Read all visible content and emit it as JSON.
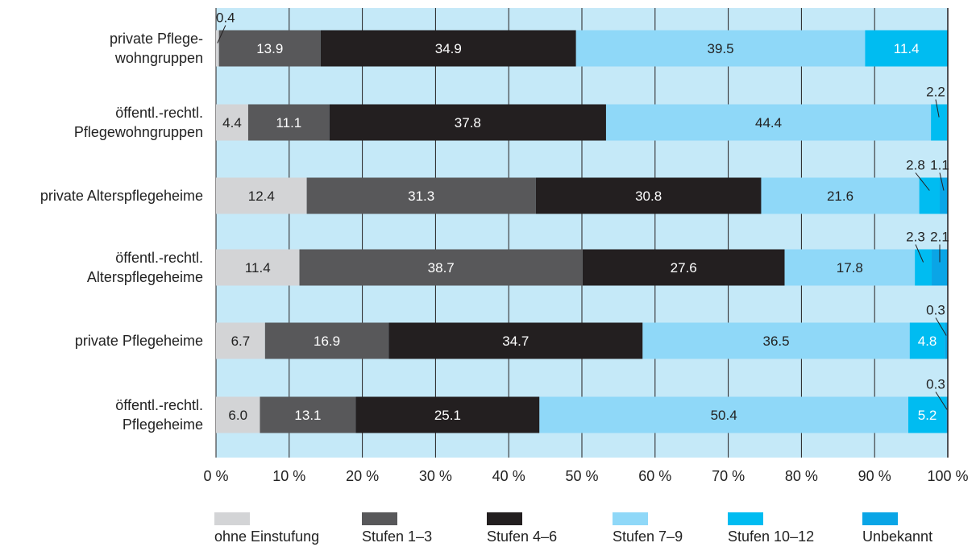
{
  "chart_data": {
    "type": "bar",
    "orientation": "horizontal",
    "stacked": true,
    "categories": [
      "private Pflege-\nwohngruppen",
      "öffentl.-rechtl.\nPflegewohngruppen",
      "private Alterspflegeheime",
      "öffentl.-rechtl.\nAlterspflegeheime",
      "private Pflegeheime",
      "öffentl.-rechtl.\nPflegeheime"
    ],
    "series": [
      {
        "name": "ohne Einstufung",
        "color": "#d3d4d6",
        "label_color": "#222222",
        "values": [
          0.4,
          4.4,
          12.4,
          11.4,
          6.7,
          6.0
        ]
      },
      {
        "name": "Stufen 1–3",
        "color": "#58585a",
        "label_color": "#ffffff",
        "values": [
          13.9,
          11.1,
          31.3,
          38.7,
          16.9,
          13.1
        ]
      },
      {
        "name": "Stufen 4–6",
        "color": "#231f20",
        "label_color": "#ffffff",
        "values": [
          34.9,
          37.8,
          30.8,
          27.6,
          34.7,
          25.1
        ]
      },
      {
        "name": "Stufen 7–9",
        "color": "#8fd8f8",
        "label_color": "#222222",
        "values": [
          39.5,
          44.4,
          21.6,
          17.8,
          36.5,
          50.4
        ]
      },
      {
        "name": "Stufen 10–12",
        "color": "#00bcf1",
        "label_color": "#ffffff",
        "values": [
          11.4,
          2.2,
          2.8,
          2.3,
          4.8,
          5.2
        ]
      },
      {
        "name": "Unbekannt",
        "color": "#0aa5e6",
        "label_color": "#222222",
        "values": [
          0,
          0,
          1.1,
          2.1,
          0.3,
          0.3
        ]
      }
    ],
    "xlim": [
      0,
      100
    ],
    "xticks": [
      "0 %",
      "10 %",
      "20 %",
      "30 %",
      "40 %",
      "50 %",
      "60 %",
      "70 %",
      "80 %",
      "90 %",
      "100 %"
    ],
    "plot_background": "#c5e9f8",
    "grid": true,
    "legend_position": "bottom"
  }
}
